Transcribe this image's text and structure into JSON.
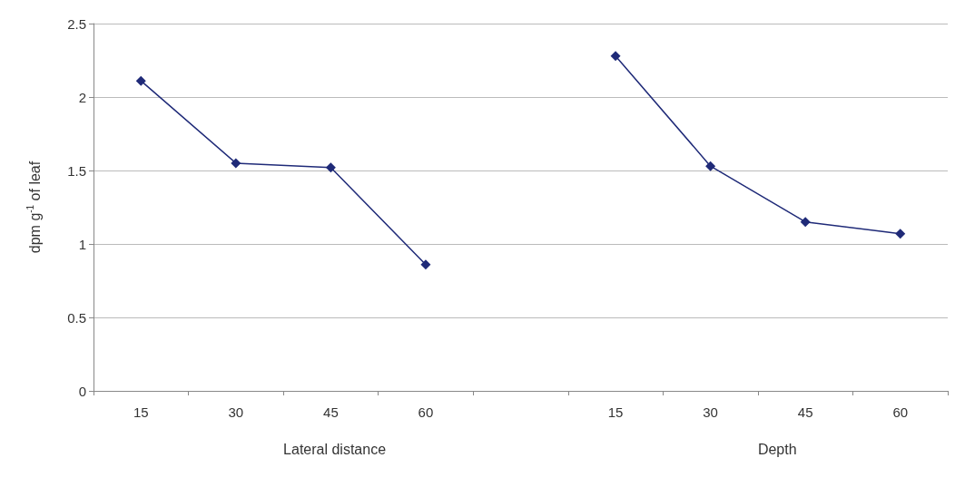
{
  "chart_data": {
    "type": "line",
    "ylabel": "dpm g$^{-1}$ of leaf",
    "categories": [
      "15",
      "30",
      "45",
      "60",
      null,
      "15",
      "30",
      "45",
      "60"
    ],
    "series": [
      {
        "color": "#1f2a78",
        "values": [
          2.11,
          1.55,
          1.52,
          0.86,
          null,
          2.28,
          1.53,
          1.15,
          1.07
        ]
      }
    ],
    "ylim": [
      0,
      2.5
    ],
    "yticks": [
      0,
      0.5,
      1,
      1.5,
      2,
      2.5
    ],
    "grid": "y",
    "marker": "diamond",
    "line_style": "solid",
    "annotations": [
      "Lateral distance",
      "Depth"
    ]
  }
}
